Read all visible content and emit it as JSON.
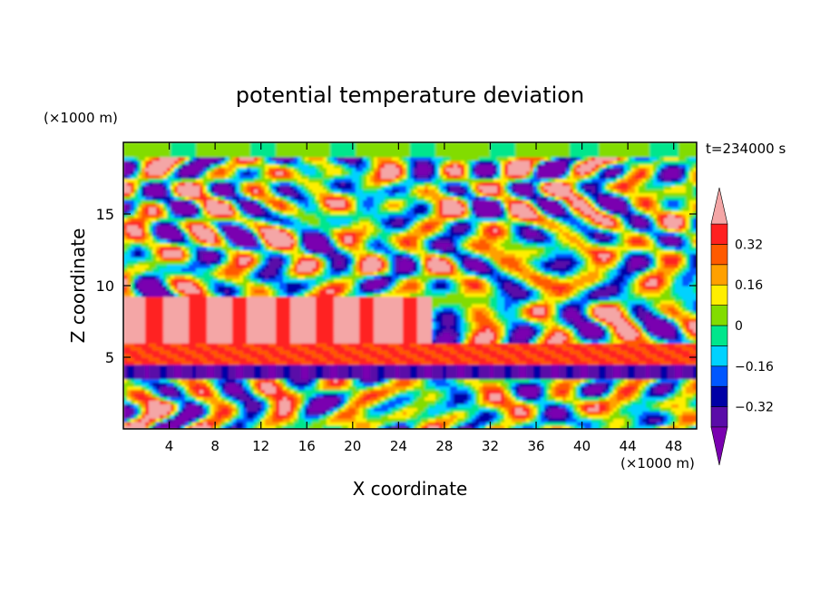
{
  "chart_data": {
    "type": "heatmap",
    "title": "potential temperature deviation",
    "xlabel": "X coordinate",
    "ylabel": "Z coordinate",
    "x_unit": "(×1000 m)",
    "z_unit": "(×1000 m)",
    "time_label": "t=234000 s",
    "xlim": [
      0,
      50
    ],
    "ylim": [
      0,
      20
    ],
    "x_ticks": [
      4,
      8,
      12,
      16,
      20,
      24,
      28,
      32,
      36,
      40,
      44,
      48
    ],
    "y_ticks": [
      5,
      10,
      15
    ],
    "colorbar": {
      "levels": [
        -0.4,
        -0.32,
        -0.24,
        -0.16,
        -0.08,
        0,
        0.08,
        0.16,
        0.24,
        0.32,
        0.4
      ],
      "labels": [
        "0.32",
        "0.16",
        "0",
        "−0.16",
        "−0.32"
      ],
      "label_values": [
        0.32,
        0.16,
        0,
        -0.16,
        -0.32
      ],
      "colors": [
        "#7a00b0",
        "#5a0ca8",
        "#0000a6",
        "#0057ff",
        "#00d2ff",
        "#00e68c",
        "#82dc00",
        "#ffee00",
        "#ffa000",
        "#ff5a00",
        "#ff2020",
        "#f4a6a6"
      ],
      "extend": "both"
    },
    "bands": [
      {
        "z": [
          0,
          3.5
        ],
        "description_value": "mixed"
      },
      {
        "z": [
          4.5,
          6.0
        ],
        "value": 0.36
      },
      {
        "z": [
          6.0,
          9.5
        ],
        "value": 0.4
      },
      {
        "z": [
          9.5,
          19.5
        ],
        "description_value": "mixed"
      }
    ]
  }
}
